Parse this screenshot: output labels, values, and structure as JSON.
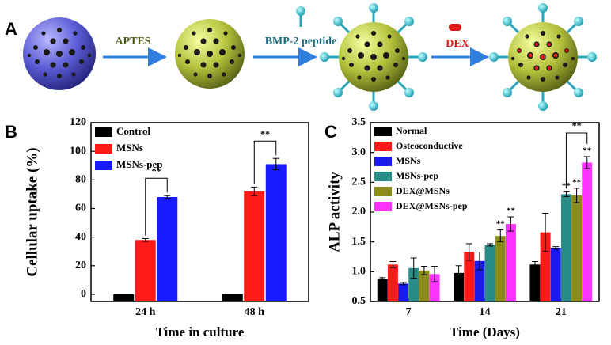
{
  "panel_labels": [
    "A",
    "B",
    "C"
  ],
  "schematic": {
    "steps": [
      "APTES",
      "BMP-2 peptide",
      "DEX"
    ]
  },
  "chart_data": [
    {
      "type": "bar",
      "y_label": "Cellular uptake (%)",
      "x_label": "Time in culture",
      "categories": [
        "24 h",
        "48 h"
      ],
      "series": [
        {
          "name": "Control",
          "color": "#000000",
          "values": [
            0,
            0
          ]
        },
        {
          "name": "MSNs",
          "color": "#ff1a1a",
          "values": [
            38,
            72
          ],
          "errors": [
            1,
            3
          ]
        },
        {
          "name": "MSNs-pep",
          "color": "#1a1aff",
          "values": [
            68,
            91
          ],
          "errors": [
            1,
            4
          ]
        }
      ],
      "brackets": [
        "**",
        "**"
      ],
      "ylim": [
        -5,
        120
      ],
      "yticks": [
        0,
        20,
        40,
        60,
        80,
        100,
        120
      ],
      "legend": "top-left"
    },
    {
      "type": "bar",
      "y_label": "ALP activity",
      "x_label": "Time (Days)",
      "categories": [
        "7",
        "14",
        "21"
      ],
      "series": [
        {
          "name": "Normal",
          "color": "#000000",
          "values": [
            0.88,
            0.98,
            1.12
          ],
          "errors": [
            0.02,
            0.12,
            0.05
          ]
        },
        {
          "name": "Osteoconductive",
          "color": "#ff1a1a",
          "values": [
            1.12,
            1.33,
            1.66
          ],
          "errors": [
            0.05,
            0.14,
            0.32
          ]
        },
        {
          "name": "MSNs",
          "color": "#1a1aee",
          "values": [
            0.8,
            1.18,
            1.4
          ],
          "errors": [
            0.02,
            0.15,
            0.02
          ]
        },
        {
          "name": "MSNs-pep",
          "color": "#2a8c86",
          "values": [
            1.06,
            1.45,
            2.3
          ],
          "errors": [
            0.17,
            0.02,
            0.04
          ],
          "significance": [
            null,
            null,
            "**"
          ]
        },
        {
          "name": "DEX@MSNs",
          "color": "#8c8c1a",
          "values": [
            1.02,
            1.6,
            2.28
          ],
          "errors": [
            0.07,
            0.1,
            0.12
          ],
          "significance": [
            null,
            "**",
            "**"
          ]
        },
        {
          "name": "DEX@MSNs-pep",
          "color": "#ff33ff",
          "values": [
            0.96,
            1.8,
            2.83
          ],
          "errors": [
            0.13,
            0.12,
            0.1
          ],
          "significance": [
            null,
            "**",
            "**"
          ]
        }
      ],
      "brackets": [
        null,
        null,
        "**"
      ],
      "ylim": [
        0.5,
        3.5
      ],
      "yticks": [
        0.5,
        {
          "value": 1.0,
          "label": "1.0"
        },
        1.5,
        {
          "value": 2.0,
          "label": "2.0"
        },
        2.5,
        {
          "value": 3.0,
          "label": "3.0"
        },
        3.5
      ],
      "legend": "top-left"
    }
  ]
}
